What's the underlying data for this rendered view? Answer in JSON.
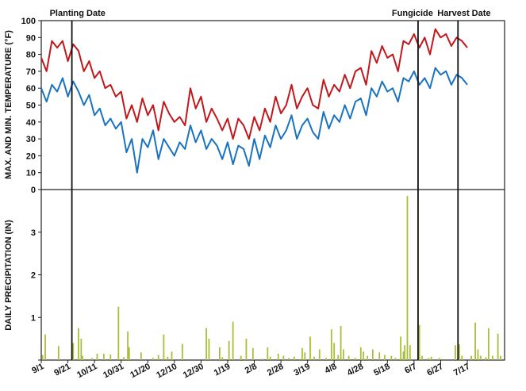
{
  "chart_data": {
    "type": "line+bar",
    "temperature_panel": {
      "ylabel": "MAX. AND MIN. TEMPERATURE (°F)",
      "ylim": [
        0,
        100
      ],
      "yticks": [
        "0",
        "10",
        "20",
        "30",
        "40",
        "50",
        "60",
        "70",
        "80",
        "90",
        "100"
      ],
      "yticks_values": [
        0,
        10,
        20,
        30,
        40,
        50,
        60,
        70,
        80,
        90,
        100
      ],
      "series": [
        {
          "key": "max",
          "color": "#c0181c",
          "days": [
            0,
            4,
            8,
            12,
            16,
            20,
            24,
            28,
            32,
            36,
            40,
            44,
            48,
            52,
            56,
            60,
            64,
            68,
            72,
            76,
            80,
            84,
            88,
            92,
            96,
            100,
            104,
            108,
            112,
            116,
            120,
            124,
            128,
            132,
            136,
            140,
            144,
            148,
            152,
            156,
            160,
            164,
            168,
            172,
            176,
            180,
            184,
            188,
            192,
            196,
            200,
            204,
            208,
            212,
            216,
            220,
            224,
            228,
            232,
            236,
            240,
            244,
            248,
            252,
            256,
            260,
            264,
            268,
            272,
            276,
            280,
            284,
            288,
            292,
            296,
            300,
            304,
            308,
            312,
            316,
            320
          ],
          "values": [
            78,
            70,
            88,
            84,
            88,
            76,
            86,
            82,
            70,
            76,
            66,
            70,
            60,
            62,
            55,
            58,
            42,
            50,
            40,
            54,
            44,
            50,
            35,
            52,
            45,
            40,
            43,
            38,
            60,
            48,
            55,
            40,
            48,
            42,
            35,
            42,
            30,
            42,
            38,
            30,
            43,
            35,
            48,
            40,
            55,
            45,
            50,
            62,
            48,
            55,
            60,
            50,
            48,
            65,
            55,
            62,
            58,
            68,
            60,
            70,
            72,
            62,
            82,
            75,
            85,
            78,
            80,
            70,
            88,
            86,
            92,
            84,
            90,
            80,
            95,
            90,
            92,
            85,
            90,
            88,
            84
          ]
        },
        {
          "key": "min",
          "color": "#1a73c0",
          "days": [
            0,
            4,
            8,
            12,
            16,
            20,
            24,
            28,
            32,
            36,
            40,
            44,
            48,
            52,
            56,
            60,
            64,
            68,
            72,
            76,
            80,
            84,
            88,
            92,
            96,
            100,
            104,
            108,
            112,
            116,
            120,
            124,
            128,
            132,
            136,
            140,
            144,
            148,
            152,
            156,
            160,
            164,
            168,
            172,
            176,
            180,
            184,
            188,
            192,
            196,
            200,
            204,
            208,
            212,
            216,
            220,
            224,
            228,
            232,
            236,
            240,
            244,
            248,
            252,
            256,
            260,
            264,
            268,
            272,
            276,
            280,
            284,
            288,
            292,
            296,
            300,
            304,
            308,
            312,
            316,
            320
          ],
          "values": [
            60,
            52,
            62,
            58,
            66,
            55,
            64,
            58,
            50,
            56,
            44,
            48,
            38,
            42,
            36,
            40,
            22,
            30,
            10,
            30,
            25,
            35,
            18,
            30,
            25,
            20,
            28,
            24,
            38,
            28,
            35,
            24,
            30,
            26,
            18,
            28,
            15,
            26,
            24,
            14,
            30,
            18,
            32,
            25,
            38,
            30,
            35,
            44,
            30,
            38,
            42,
            34,
            30,
            46,
            36,
            44,
            40,
            50,
            42,
            52,
            54,
            44,
            60,
            55,
            64,
            58,
            60,
            52,
            66,
            64,
            70,
            62,
            66,
            60,
            72,
            68,
            70,
            62,
            68,
            66,
            62
          ]
        }
      ]
    },
    "precip_panel": {
      "ylabel": "DAILY PRECIPITATION (IN)",
      "ylim": [
        0,
        4
      ],
      "yticks": [
        "0",
        "1",
        "2",
        "3"
      ],
      "yticks_values": [
        0,
        1,
        2,
        3
      ],
      "color": "#a9bf3a",
      "bars": [
        {
          "day": 1,
          "value": 0.12
        },
        {
          "day": 3,
          "value": 0.6
        },
        {
          "day": 13,
          "value": 0.33
        },
        {
          "day": 24,
          "value": 0.4
        },
        {
          "day": 28,
          "value": 0.75
        },
        {
          "day": 30,
          "value": 0.5
        },
        {
          "day": 31,
          "value": 0.1
        },
        {
          "day": 38,
          "value": 0.05
        },
        {
          "day": 42,
          "value": 0.15
        },
        {
          "day": 47,
          "value": 0.15
        },
        {
          "day": 52,
          "value": 0.13
        },
        {
          "day": 58,
          "value": 1.25
        },
        {
          "day": 62,
          "value": 0.07
        },
        {
          "day": 65,
          "value": 0.67
        },
        {
          "day": 66,
          "value": 0.3
        },
        {
          "day": 75,
          "value": 0.18
        },
        {
          "day": 84,
          "value": 0.05
        },
        {
          "day": 88,
          "value": 0.12
        },
        {
          "day": 92,
          "value": 0.6
        },
        {
          "day": 95,
          "value": 0.08
        },
        {
          "day": 98,
          "value": 0.2
        },
        {
          "day": 106,
          "value": 0.38
        },
        {
          "day": 124,
          "value": 0.75
        },
        {
          "day": 126,
          "value": 0.5
        },
        {
          "day": 134,
          "value": 0.3
        },
        {
          "day": 136,
          "value": 0.07
        },
        {
          "day": 141,
          "value": 0.45
        },
        {
          "day": 144,
          "value": 0.9
        },
        {
          "day": 150,
          "value": 0.1
        },
        {
          "day": 154,
          "value": 0.5
        },
        {
          "day": 159,
          "value": 0.28
        },
        {
          "day": 166,
          "value": 0.03
        },
        {
          "day": 170,
          "value": 0.3
        },
        {
          "day": 172,
          "value": 0.08
        },
        {
          "day": 178,
          "value": 0.15
        },
        {
          "day": 182,
          "value": 0.1
        },
        {
          "day": 186,
          "value": 0.05
        },
        {
          "day": 190,
          "value": 0.08
        },
        {
          "day": 196,
          "value": 0.28
        },
        {
          "day": 198,
          "value": 0.18
        },
        {
          "day": 202,
          "value": 0.55
        },
        {
          "day": 205,
          "value": 0.08
        },
        {
          "day": 209,
          "value": 0.25
        },
        {
          "day": 214,
          "value": 0.05
        },
        {
          "day": 218,
          "value": 0.72
        },
        {
          "day": 220,
          "value": 0.4
        },
        {
          "day": 223,
          "value": 0.12
        },
        {
          "day": 225,
          "value": 0.8
        },
        {
          "day": 227,
          "value": 0.25
        },
        {
          "day": 231,
          "value": 0.1
        },
        {
          "day": 236,
          "value": 0.05
        },
        {
          "day": 240,
          "value": 0.3
        },
        {
          "day": 242,
          "value": 0.2
        },
        {
          "day": 245,
          "value": 0.1
        },
        {
          "day": 249,
          "value": 0.25
        },
        {
          "day": 254,
          "value": 0.18
        },
        {
          "day": 258,
          "value": 0.12
        },
        {
          "day": 263,
          "value": 0.1
        },
        {
          "day": 266,
          "value": 0.05
        },
        {
          "day": 270,
          "value": 0.55
        },
        {
          "day": 272,
          "value": 0.2
        },
        {
          "day": 273,
          "value": 0.35
        },
        {
          "day": 275,
          "value": 3.85
        },
        {
          "day": 277,
          "value": 0.35
        },
        {
          "day": 284,
          "value": 0.82
        },
        {
          "day": 286,
          "value": 0.1
        },
        {
          "day": 291,
          "value": 0.05
        },
        {
          "day": 293,
          "value": 0.08
        },
        {
          "day": 299,
          "value": 0.05
        },
        {
          "day": 311,
          "value": 0.35
        },
        {
          "day": 314,
          "value": 0.37
        },
        {
          "day": 316,
          "value": 0.1
        },
        {
          "day": 323,
          "value": 0.1
        },
        {
          "day": 326,
          "value": 0.88
        },
        {
          "day": 328,
          "value": 0.25
        },
        {
          "day": 330,
          "value": 0.1
        },
        {
          "day": 334,
          "value": 0.07
        },
        {
          "day": 336,
          "value": 0.75
        },
        {
          "day": 339,
          "value": 0.1
        },
        {
          "day": 343,
          "value": 0.62
        },
        {
          "day": 345,
          "value": 0.1
        }
      ]
    },
    "x_axis": {
      "start_date": "9/1",
      "xlim_days": [
        0,
        348
      ],
      "tick_days": [
        0,
        20,
        40,
        60,
        80,
        100,
        120,
        140,
        160,
        180,
        200,
        220,
        240,
        260,
        280,
        300,
        320
      ],
      "tick_labels": [
        "9/1",
        "9/21",
        "10/11",
        "10/31",
        "11/20",
        "12/10",
        "12/30",
        "1/19",
        "2/8",
        "2/28",
        "3/19",
        "4/8",
        "4/28",
        "5/18",
        "6/7",
        "6/27",
        "7/17"
      ]
    },
    "events": [
      {
        "label": "Planting Date",
        "day": 23
      },
      {
        "label": "Fungicide",
        "day": 283
      },
      {
        "label": "Harvest Date",
        "day": 313
      }
    ]
  }
}
